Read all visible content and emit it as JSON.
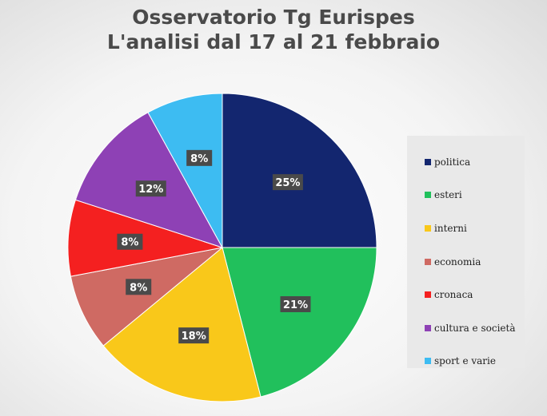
{
  "chart_data": {
    "type": "pie",
    "title_lines": [
      "Osservatorio Tg Eurispes",
      "L'analisi dal 17 al 21 febbraio"
    ],
    "slices": [
      {
        "name": "politica",
        "value": 25,
        "label": "25%",
        "color": "#13266f"
      },
      {
        "name": "esteri",
        "value": 21,
        "label": "21%",
        "color": "#21c05c"
      },
      {
        "name": "interni",
        "value": 18,
        "label": "18%",
        "color": "#f9c81a"
      },
      {
        "name": "economia",
        "value": 8,
        "label": "8%",
        "color": "#cf6a63"
      },
      {
        "name": "cronaca",
        "value": 8,
        "label": "8%",
        "color": "#f42020"
      },
      {
        "name": "cultura e società",
        "value": 12,
        "label": "12%",
        "color": "#8e41b5"
      },
      {
        "name": "sport e varie",
        "value": 8,
        "label": "8%",
        "color": "#3dbcf2"
      }
    ],
    "legend_position": "right",
    "data_labels": true
  }
}
